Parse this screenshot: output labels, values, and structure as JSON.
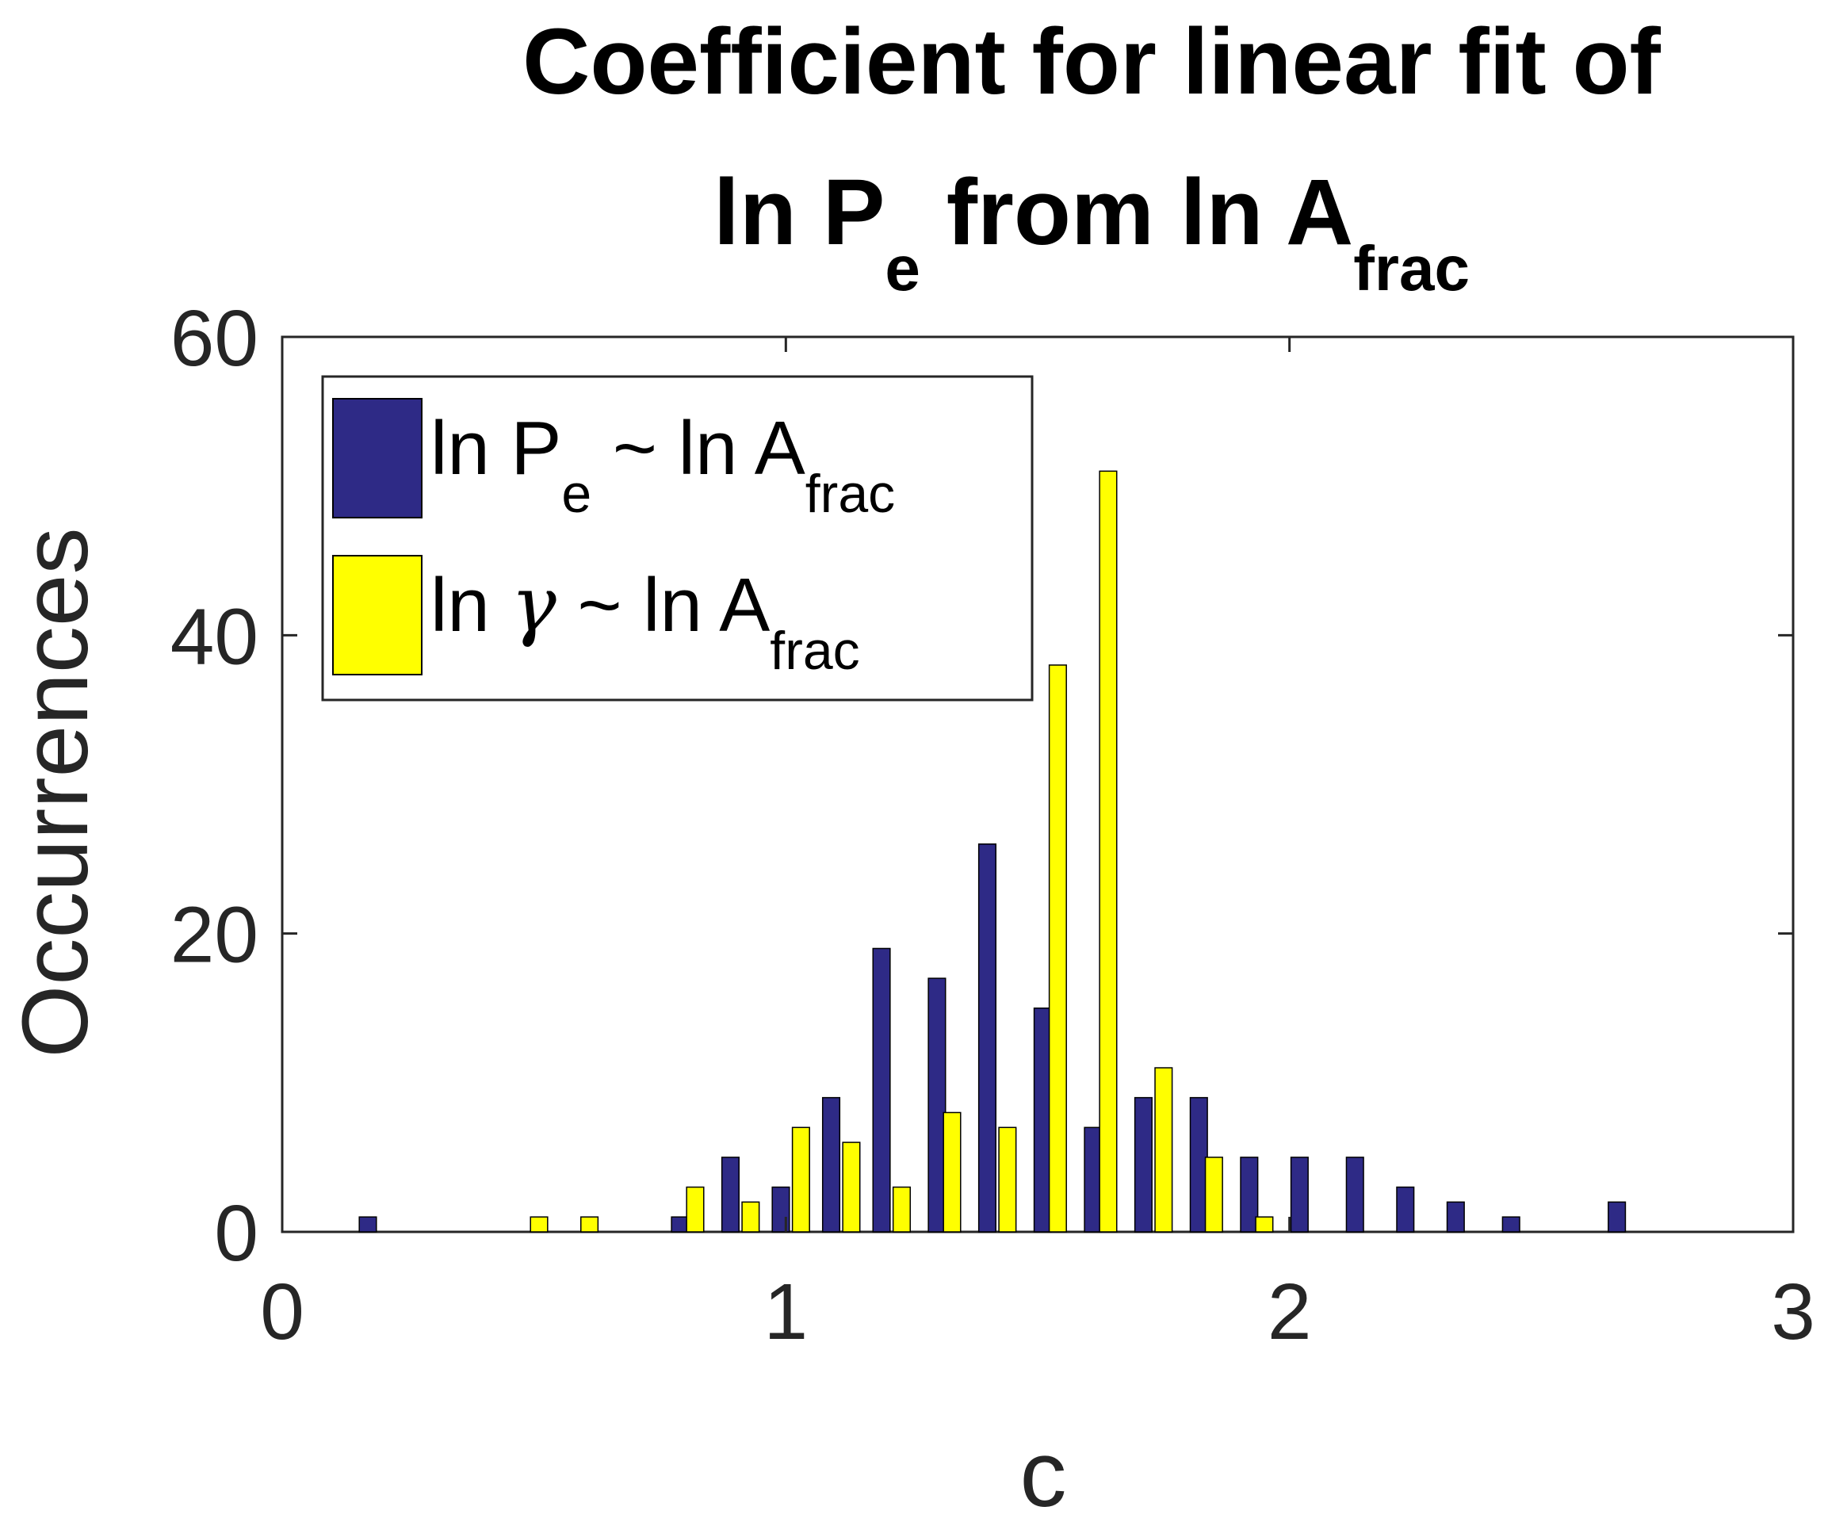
{
  "chart_data": {
    "type": "bar",
    "title_line1": "Coefficient for linear fit of",
    "title_line2": {
      "a": "ln P",
      "a_sub": "e",
      "b": " from ln A",
      "b_sub": "frac"
    },
    "xlabel": "c",
    "ylabel": "Occurrences",
    "xlim": [
      0,
      3
    ],
    "ylim": [
      0,
      60
    ],
    "xticks": [
      0,
      1,
      2,
      3
    ],
    "xtick_labels": [
      "0",
      "1",
      "2",
      "3"
    ],
    "yticks": [
      0,
      20,
      40,
      60
    ],
    "ytick_labels": [
      "0",
      "20",
      "40",
      "60"
    ],
    "bin_width": 0.103,
    "legend_position": "top-left",
    "series": [
      {
        "name": "ln Pe ~ ln Afrac",
        "label_parts": {
          "a": "ln P",
          "a_sub": "e",
          "b": " ~ ln A",
          "b_sub": "frac"
        },
        "color": "#2e2a86",
        "x": [
          0.17,
          0.79,
          0.89,
          0.99,
          1.09,
          1.19,
          1.3,
          1.4,
          1.51,
          1.61,
          1.71,
          1.82,
          1.92,
          2.02,
          2.13,
          2.23,
          2.33,
          2.44,
          2.65
        ],
        "values": [
          1,
          1,
          5,
          3,
          9,
          19,
          17,
          26,
          15,
          7,
          9,
          9,
          5,
          5,
          5,
          3,
          2,
          1,
          2
        ]
      },
      {
        "name": "ln gamma ~ ln Afrac",
        "label_parts": {
          "a": "ln ",
          "greek": "γ",
          "b": " ~ ln A",
          "b_sub": "frac"
        },
        "color": "#ffff00",
        "x": [
          0.51,
          0.61,
          0.82,
          0.93,
          1.03,
          1.13,
          1.23,
          1.33,
          1.44,
          1.54,
          1.64,
          1.75,
          1.85,
          1.95
        ],
        "values": [
          1,
          1,
          3,
          2,
          7,
          6,
          3,
          8,
          7,
          38,
          51,
          11,
          5,
          1
        ]
      }
    ]
  }
}
